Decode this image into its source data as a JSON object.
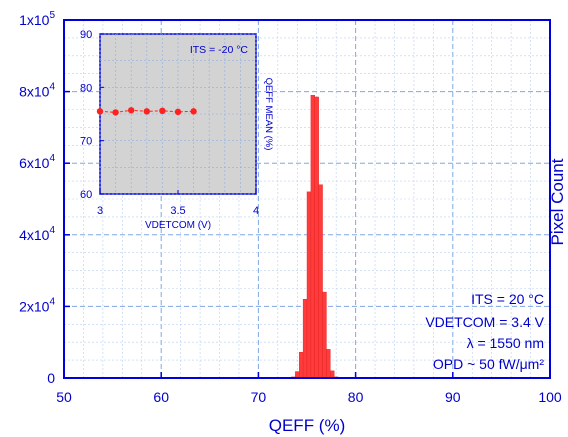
{
  "chart_data": [
    {
      "type": "bar",
      "xlabel": "QEFF (%)",
      "ylabel": "Pixel Count",
      "xlim": [
        50,
        100
      ],
      "ylim": [
        0,
        100000
      ],
      "x_ticks": [
        "50",
        "60",
        "70",
        "80",
        "90",
        "100"
      ],
      "y_ticks": [
        {
          "mantissa": "0",
          "exp": ""
        },
        {
          "mantissa": "2x10",
          "exp": "4"
        },
        {
          "mantissa": "4x10",
          "exp": "4"
        },
        {
          "mantissa": "6x10",
          "exp": "4"
        },
        {
          "mantissa": "8x10",
          "exp": "4"
        },
        {
          "mantissa": "1x10",
          "exp": "5"
        }
      ],
      "grid": true,
      "bar_color": "#ff3b3b",
      "bin_width": 0.4,
      "bin_centers": [
        73.6,
        74.0,
        74.4,
        74.8,
        75.2,
        75.6,
        76.0,
        76.4,
        76.8,
        77.2,
        77.6,
        78.0
      ],
      "values": [
        300,
        1800,
        7200,
        22000,
        52000,
        79000,
        78500,
        54000,
        24000,
        8000,
        2000,
        300
      ],
      "annotations": [
        "ITS = 20 °C",
        "VDETCOM = 3.4 V",
        "λ = 1550 nm",
        "OPD ~ 50 fW/μm²"
      ]
    },
    {
      "type": "scatter",
      "xlabel": "VDETCOM (V)",
      "ylabel": "QEFF MEAN (%)",
      "xlim": [
        3,
        4
      ],
      "ylim": [
        60,
        90
      ],
      "x_ticks": [
        "3",
        "3.5",
        "4"
      ],
      "y_ticks": [
        "60",
        "70",
        "80",
        "90"
      ],
      "grid": true,
      "marker_color": "#ff2020",
      "x": [
        3.0,
        3.1,
        3.2,
        3.3,
        3.4,
        3.5,
        3.6
      ],
      "y": [
        75.5,
        75.3,
        75.7,
        75.5,
        75.6,
        75.4,
        75.5
      ],
      "annotation": "ITS = -20 °C"
    }
  ]
}
